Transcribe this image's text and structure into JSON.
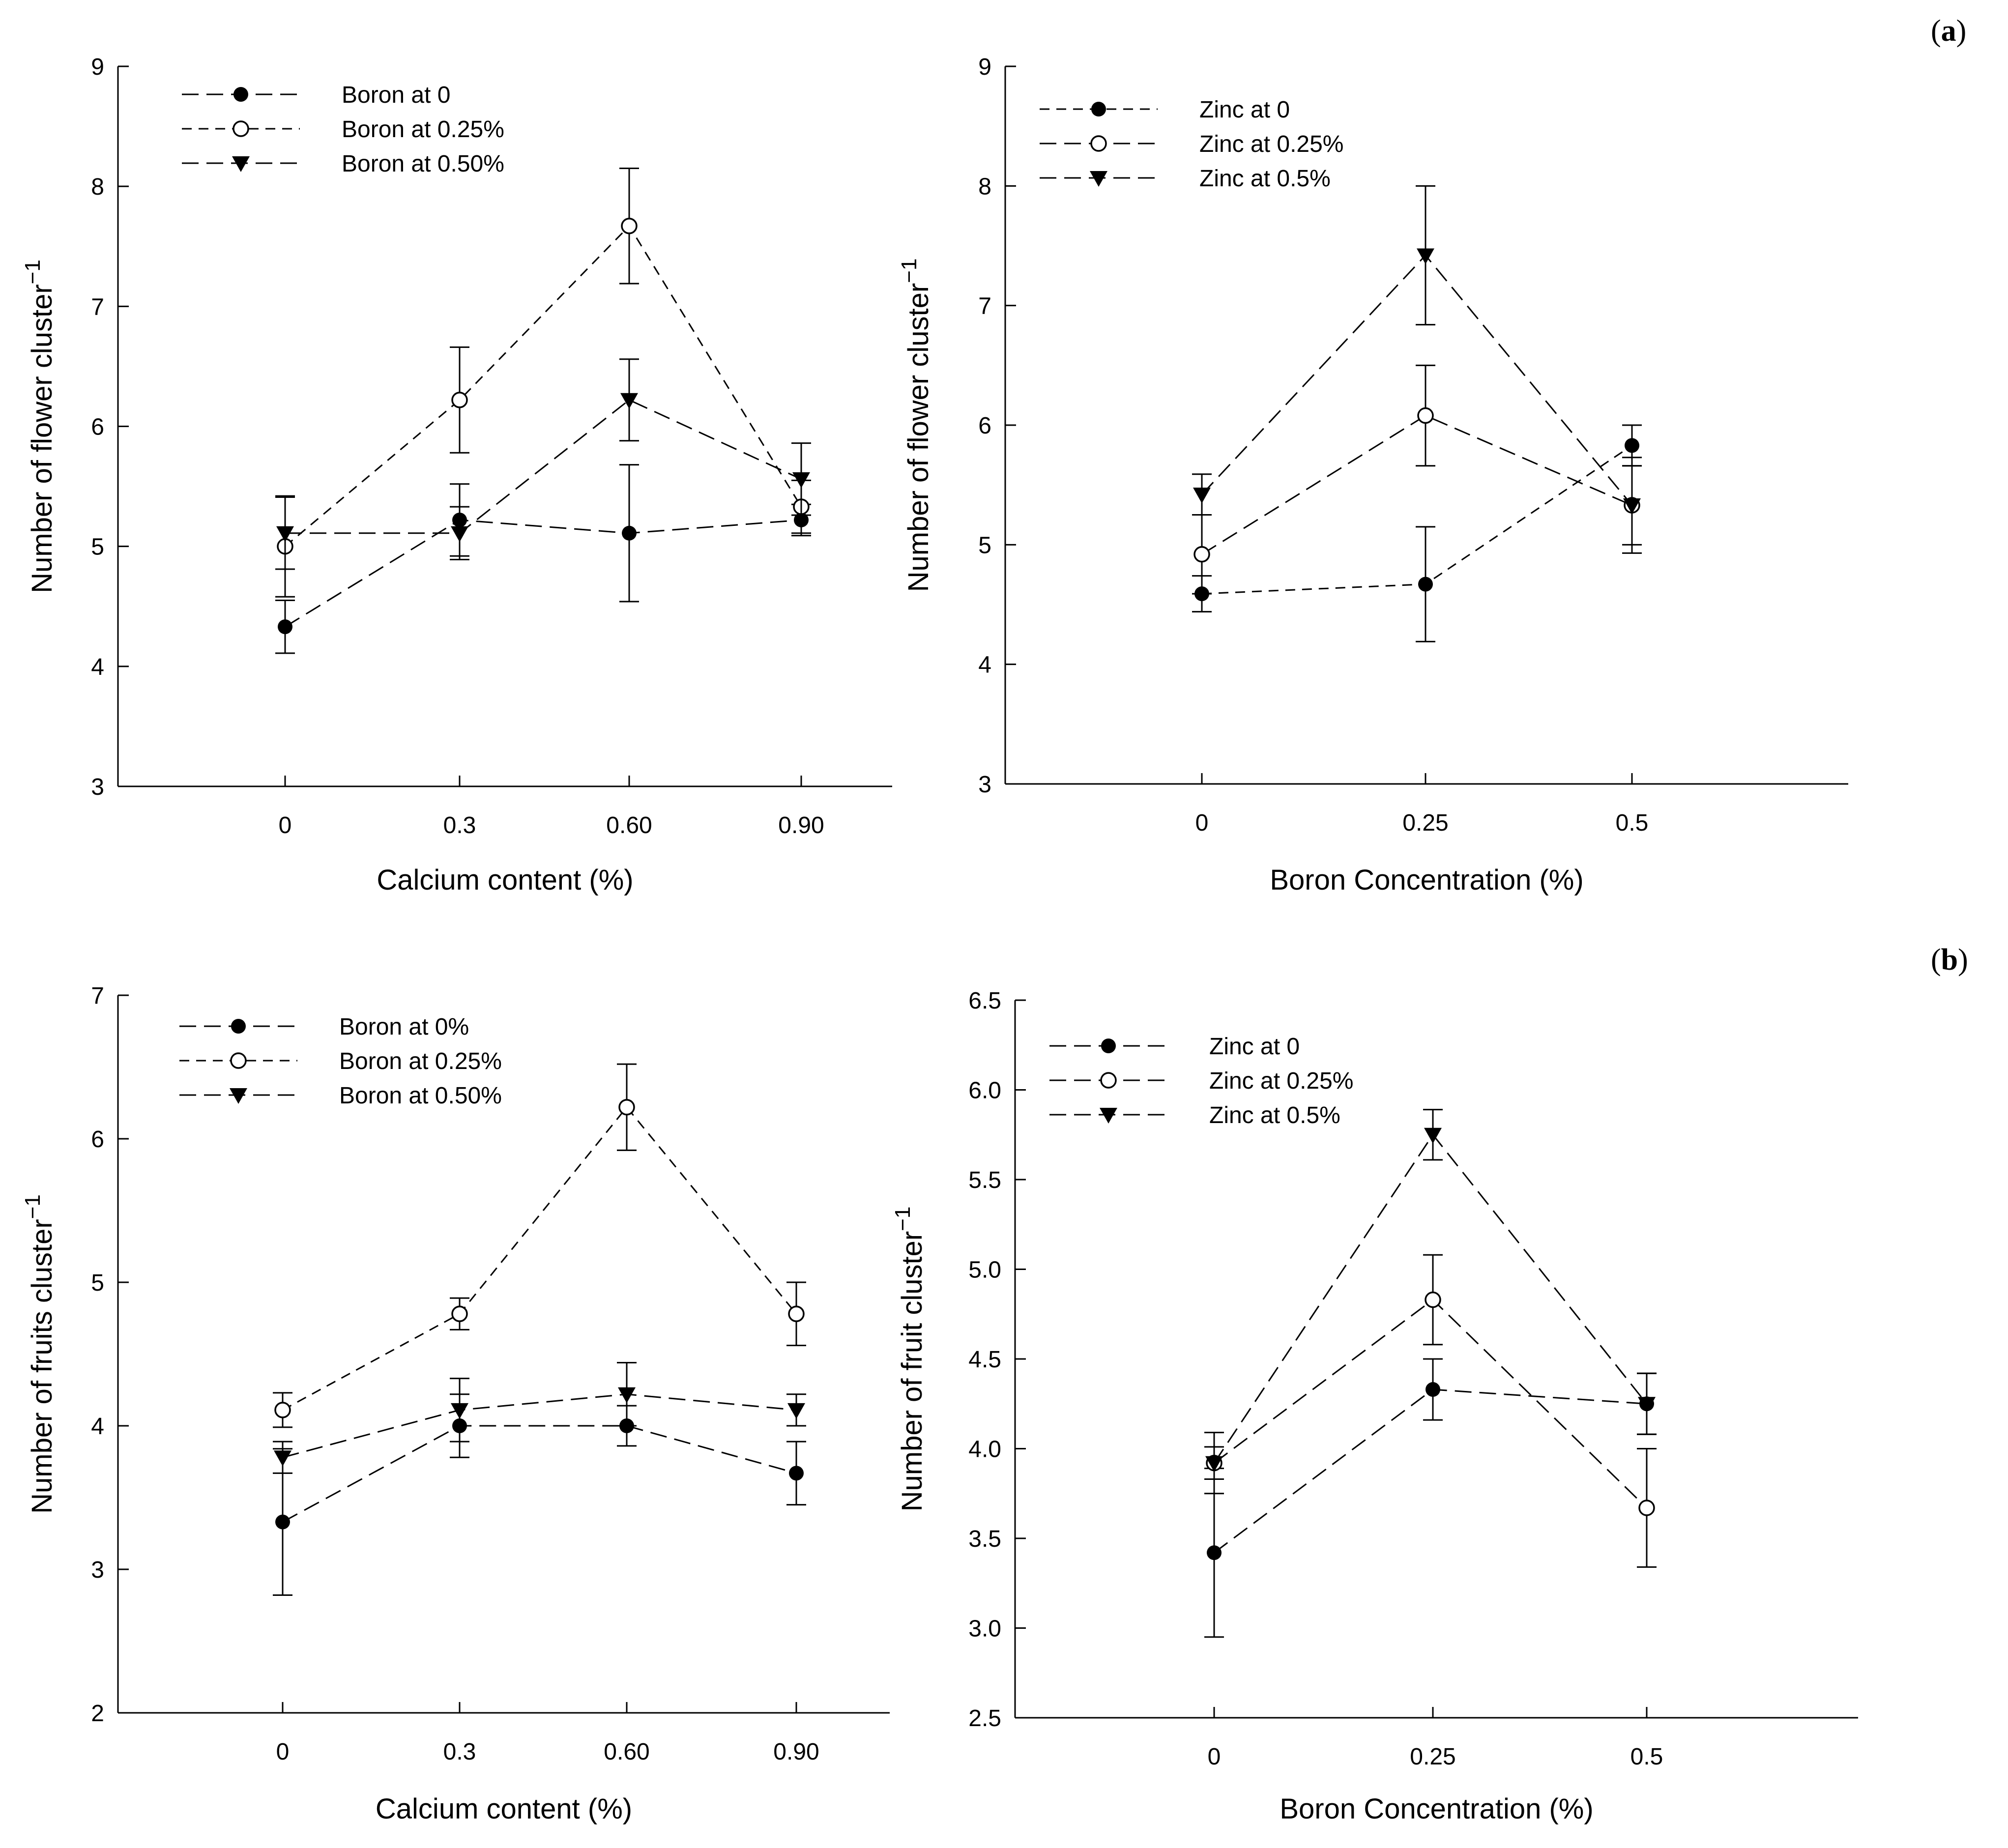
{
  "panel_labels": [
    {
      "open": "(",
      "letter": "a",
      "close": ")"
    },
    {
      "open": "(",
      "letter": "b",
      "close": ")"
    }
  ],
  "chart_data": [
    {
      "type": "line",
      "ylabel": "Number of flower cluster",
      "ylabel_sup": "−1",
      "xlabel": "Calcium content (%)",
      "categories": [
        "0",
        "0.3",
        "0.60",
        "0.90"
      ],
      "ylim": [
        3,
        9
      ],
      "yticks": [
        "3",
        "4",
        "5",
        "6",
        "7",
        "8",
        "9"
      ],
      "series": [
        {
          "name": "Boron at 0",
          "marker": "filled-circle",
          "dash": "long",
          "values": [
            4.33,
            5.22,
            5.11,
            5.22
          ],
          "errors": [
            0.22,
            0.3,
            0.57,
            0.13
          ]
        },
        {
          "name": "Boron at 0.25%",
          "marker": "open-circle",
          "dash": "short",
          "values": [
            5.0,
            6.22,
            7.67,
            5.33
          ],
          "errors": [
            0.42,
            0.44,
            0.48,
            0.22
          ]
        },
        {
          "name": "Boron at 0.50%",
          "marker": "triangle-down",
          "dash": "long",
          "values": [
            5.11,
            5.11,
            6.22,
            5.56
          ],
          "errors": [
            0.3,
            0.22,
            0.34,
            0.3
          ]
        }
      ]
    },
    {
      "type": "line",
      "ylabel": "Number of flower cluster",
      "ylabel_sup": "−1",
      "xlabel": "Boron Concentration (%)",
      "categories": [
        "0",
        "0.25",
        "0.5"
      ],
      "ylim": [
        3,
        9
      ],
      "yticks": [
        "3",
        "4",
        "5",
        "6",
        "7",
        "8",
        "9"
      ],
      "series": [
        {
          "name": "Zinc at 0",
          "marker": "filled-circle",
          "dash": "short",
          "values": [
            4.59,
            4.67,
            5.83
          ],
          "errors": [
            0.15,
            0.48,
            0.17
          ]
        },
        {
          "name": "Zinc at 0.25%",
          "marker": "open-circle",
          "dash": "long",
          "values": [
            4.92,
            6.08,
            5.33
          ],
          "errors": [
            0.33,
            0.42,
            0.33
          ]
        },
        {
          "name": "Zinc at 0.5%",
          "marker": "triangle-down",
          "dash": "long",
          "values": [
            5.42,
            7.42,
            5.33
          ],
          "errors": [
            0.17,
            0.58,
            0.4
          ]
        }
      ]
    },
    {
      "type": "line",
      "ylabel": "Number of fruits cluster",
      "ylabel_sup": "−1",
      "xlabel": "Calcium content (%)",
      "categories": [
        "0",
        "0.3",
        "0.60",
        "0.90"
      ],
      "ylim": [
        2,
        7
      ],
      "yticks": [
        "2",
        "3",
        "4",
        "5",
        "6",
        "7"
      ],
      "series": [
        {
          "name": "Boron at 0%",
          "marker": "filled-circle",
          "dash": "long",
          "values": [
            3.33,
            4.0,
            4.0,
            3.67
          ],
          "errors": [
            0.51,
            0.22,
            0.14,
            0.22
          ]
        },
        {
          "name": "Boron at 0.25%",
          "marker": "open-circle",
          "dash": "short",
          "values": [
            4.11,
            4.78,
            6.22,
            4.78
          ],
          "errors": [
            0.12,
            0.11,
            0.3,
            0.22
          ]
        },
        {
          "name": "Boron at 0.50%",
          "marker": "triangle-down",
          "dash": "long",
          "values": [
            3.78,
            4.11,
            4.22,
            4.11
          ],
          "errors": [
            0.11,
            0.22,
            0.22,
            0.11
          ]
        }
      ]
    },
    {
      "type": "line",
      "ylabel": "Number of fruit cluster",
      "ylabel_sup": "−1",
      "xlabel": "Boron Concentration (%)",
      "categories": [
        "0",
        "0.25",
        "0.5"
      ],
      "ylim": [
        2.5,
        6.5
      ],
      "yticks": [
        "2.5",
        "3.0",
        "3.5",
        "4.0",
        "4.5",
        "5.0",
        "5.5",
        "6.0",
        "6.5"
      ],
      "series": [
        {
          "name": "Zinc at 0",
          "marker": "filled-circle",
          "dash": "long",
          "values": [
            3.42,
            4.33,
            4.25
          ],
          "errors": [
            0.47,
            0.17,
            0.17
          ]
        },
        {
          "name": "Zinc at 0.25%",
          "marker": "open-circle",
          "dash": "long",
          "values": [
            3.92,
            4.83,
            3.67
          ],
          "errors": [
            0.17,
            0.25,
            0.33
          ]
        },
        {
          "name": "Zinc at 0.5%",
          "marker": "triangle-down",
          "dash": "long",
          "values": [
            3.92,
            5.75,
            4.25
          ],
          "errors": [
            0.09,
            0.14,
            0.17
          ]
        }
      ]
    }
  ]
}
